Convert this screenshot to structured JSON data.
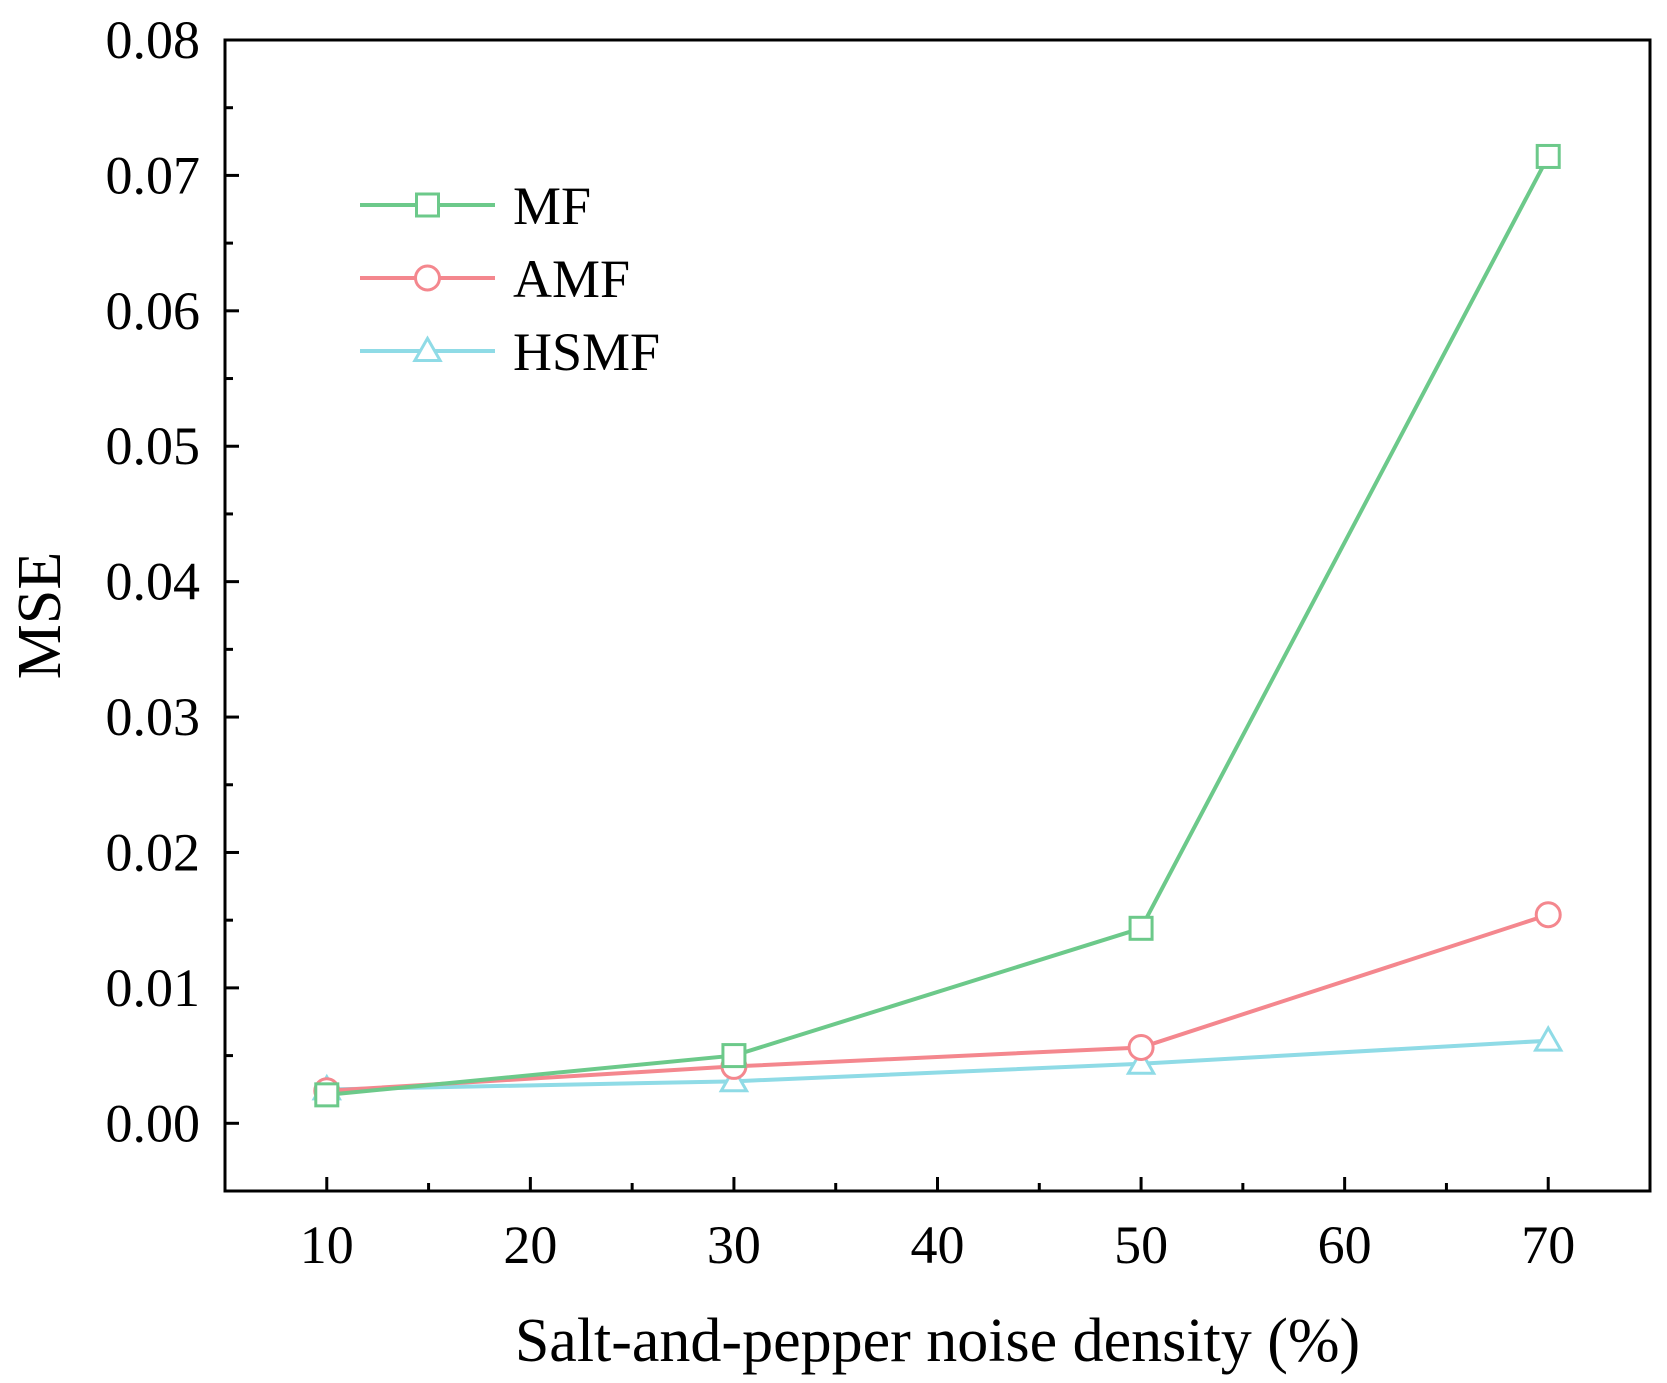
{
  "chart_data": {
    "type": "line",
    "title": "",
    "xlabel": "Salt-and-pepper noise density (%)",
    "ylabel": "MSE",
    "xlim": [
      5,
      75
    ],
    "ylim": [
      -0.005,
      0.08
    ],
    "xticks": [
      10,
      20,
      30,
      40,
      50,
      60,
      70
    ],
    "xtick_labels": [
      "10",
      "20",
      "30",
      "40",
      "50",
      "60",
      "70"
    ],
    "yticks": [
      0.0,
      0.01,
      0.02,
      0.03,
      0.04,
      0.05,
      0.06,
      0.07,
      0.08
    ],
    "ytick_labels": [
      "0.00",
      "0.01",
      "0.02",
      "0.03",
      "0.04",
      "0.05",
      "0.06",
      "0.07",
      "0.08"
    ],
    "grid": false,
    "legend_position": "top-left",
    "x": [
      10,
      30,
      50,
      70
    ],
    "series": [
      {
        "name": "MF",
        "marker": "square",
        "color": "#6cc98a",
        "values": [
          0.0021,
          0.005,
          0.0144,
          0.0714
        ]
      },
      {
        "name": "AMF",
        "marker": "circle",
        "color": "#f4878e",
        "values": [
          0.0024,
          0.0042,
          0.0056,
          0.0154
        ]
      },
      {
        "name": "HSMF",
        "marker": "triangle",
        "color": "#8fdbe6",
        "values": [
          0.0025,
          0.0031,
          0.0044,
          0.0061
        ]
      }
    ]
  }
}
